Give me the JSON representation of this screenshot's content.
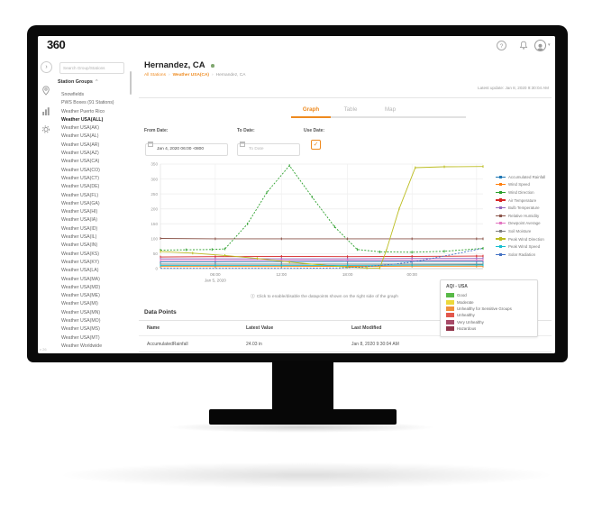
{
  "logo": "360",
  "icons": {
    "help": "?",
    "user_caret": "▾",
    "collapse": "›",
    "groups_caret": "^",
    "info": "ⓘ",
    "check": "✓",
    "breadcrumb_sep": "›"
  },
  "colors": {
    "accent": "#ee8a1f",
    "status_dot": "#7fa76f"
  },
  "rail": {
    "version": "v 26"
  },
  "sidebar": {
    "search_placeholder": "Search Group/Stations",
    "groups_header": "Station Groups",
    "items": [
      {
        "label": "Snowfields",
        "bold": false
      },
      {
        "label": "PWS Boxes (91 Stations)",
        "bold": false
      },
      {
        "label": "Weather Puerto Rico",
        "bold": false
      },
      {
        "label": "Weather USA(ALL)",
        "bold": true
      },
      {
        "label": "Weather USA(AK)",
        "bold": false
      },
      {
        "label": "Weather USA(AL)",
        "bold": false
      },
      {
        "label": "Weather USA(AR)",
        "bold": false
      },
      {
        "label": "Weather USA(AZ)",
        "bold": false
      },
      {
        "label": "Weather USA(CA)",
        "bold": false
      },
      {
        "label": "Weather USA(CO)",
        "bold": false
      },
      {
        "label": "Weather USA(CT)",
        "bold": false
      },
      {
        "label": "Weather USA(DE)",
        "bold": false
      },
      {
        "label": "Weather USA(FL)",
        "bold": false
      },
      {
        "label": "Weather USA(GA)",
        "bold": false
      },
      {
        "label": "Weather USA(HI)",
        "bold": false
      },
      {
        "label": "Weather USA(IA)",
        "bold": false
      },
      {
        "label": "Weather USA(ID)",
        "bold": false
      },
      {
        "label": "Weather USA(IL)",
        "bold": false
      },
      {
        "label": "Weather USA(IN)",
        "bold": false
      },
      {
        "label": "Weather USA(KS)",
        "bold": false
      },
      {
        "label": "Weather USA(KY)",
        "bold": false
      },
      {
        "label": "Weather USA(LA)",
        "bold": false
      },
      {
        "label": "Weather USA(MA)",
        "bold": false
      },
      {
        "label": "Weather USA(MD)",
        "bold": false
      },
      {
        "label": "Weather USA(ME)",
        "bold": false
      },
      {
        "label": "Weather USA(MI)",
        "bold": false
      },
      {
        "label": "Weather USA(MN)",
        "bold": false
      },
      {
        "label": "Weather USA(MO)",
        "bold": false
      },
      {
        "label": "Weather USA(MS)",
        "bold": false
      },
      {
        "label": "Weather USA(MT)",
        "bold": false
      },
      {
        "label": "Weather Worldwide",
        "bold": false
      }
    ]
  },
  "main": {
    "title": "Hernandez, CA",
    "breadcrumb": {
      "sep": "›",
      "items": [
        "All Stations",
        "Weather USA(CA)",
        "Hernandez, CA"
      ]
    },
    "latest_update": "Latest update: Jan 8, 2020 9:30:04 AM",
    "tabs": [
      {
        "label": "Graph",
        "active": true
      },
      {
        "label": "Table",
        "active": false
      },
      {
        "label": "Map",
        "active": false
      }
    ],
    "filters": {
      "from_label": "From Date:",
      "from_value": "Jan 4, 2020 06:00 -0800",
      "to_label": "To Date:",
      "to_placeholder": "To Date",
      "use_label": "Use Date:"
    },
    "note": "Click to enable/disable the datapoints shown on the right side of the graph",
    "aqi_legend": {
      "title": "AQI - USA",
      "items": [
        {
          "label": "Good",
          "color": "#58b947"
        },
        {
          "label": "Moderate",
          "color": "#ecd93b"
        },
        {
          "label": "Unhealthy for Sensitive Groups",
          "color": "#f0913c"
        },
        {
          "label": "Unhealthy",
          "color": "#e2574c"
        },
        {
          "label": "Very Unhealthy",
          "color": "#a84a68"
        },
        {
          "label": "Hazardous",
          "color": "#8f3349"
        }
      ]
    },
    "datapoints": {
      "heading": "Data Points",
      "columns": [
        "Name",
        "Latest Value",
        "Last Modified"
      ],
      "rows": [
        [
          "AccumulatedRainfall",
          "24.03 in",
          "Jan 8, 2020 9:30:04 AM"
        ]
      ]
    }
  },
  "chart_data": {
    "type": "line",
    "title": "",
    "xlabel": "",
    "ylabel": "",
    "ylim": [
      0,
      350
    ],
    "yticks": [
      0,
      50,
      100,
      150,
      200,
      250,
      300,
      350
    ],
    "grid": true,
    "legend_position": "right",
    "xticks": [
      {
        "pos": 17,
        "label": "06:00",
        "sublabel": "Jan 5, 2020"
      },
      {
        "pos": 37.5,
        "label": "12:00",
        "sublabel": ""
      },
      {
        "pos": 58,
        "label": "18:00",
        "sublabel": ""
      },
      {
        "pos": 78,
        "label": "00:00",
        "sublabel": ""
      },
      {
        "pos": 98,
        "label": "",
        "sublabel": ""
      }
    ],
    "series": [
      {
        "name": "Accumulated Rainfall",
        "color": "#1f77b4",
        "dash": false,
        "markers": true,
        "points": [
          [
            0,
            23
          ],
          [
            17,
            23
          ],
          [
            37.5,
            23.5
          ],
          [
            58,
            24
          ],
          [
            78,
            24
          ],
          [
            98,
            24
          ],
          [
            100,
            24
          ]
        ]
      },
      {
        "name": "Wind Speed",
        "color": "#ff7f0e",
        "dash": false,
        "markers": true,
        "points": [
          [
            0,
            7
          ],
          [
            17,
            7
          ],
          [
            37.5,
            7
          ],
          [
            58,
            7.5
          ],
          [
            78,
            8
          ],
          [
            98,
            8
          ],
          [
            100,
            8
          ]
        ]
      },
      {
        "name": "Wind Direction",
        "color": "#2ca02c",
        "dash": true,
        "markers": true,
        "points": [
          [
            0,
            62
          ],
          [
            8,
            63
          ],
          [
            16,
            64
          ],
          [
            20,
            66
          ],
          [
            27,
            150
          ],
          [
            33,
            255
          ],
          [
            40,
            345
          ],
          [
            47,
            240
          ],
          [
            54,
            140
          ],
          [
            61,
            64
          ],
          [
            68,
            56
          ],
          [
            78,
            55
          ],
          [
            88,
            58
          ],
          [
            100,
            68
          ]
        ]
      },
      {
        "name": "Air Temperature",
        "color": "#d62728",
        "dash": false,
        "markers": true,
        "points": [
          [
            0,
            39
          ],
          [
            17,
            40
          ],
          [
            37.5,
            41
          ],
          [
            58,
            40
          ],
          [
            78,
            41
          ],
          [
            98,
            42
          ],
          [
            100,
            42
          ]
        ]
      },
      {
        "name": "Bulb Temperature",
        "color": "#9467bd",
        "dash": false,
        "markers": true,
        "points": [
          [
            0,
            33
          ],
          [
            17,
            33
          ],
          [
            37.5,
            33
          ],
          [
            58,
            33
          ],
          [
            78,
            34
          ],
          [
            98,
            34
          ],
          [
            100,
            34
          ]
        ]
      },
      {
        "name": "Relative Humidity",
        "color": "#8c564b",
        "dash": false,
        "markers": true,
        "points": [
          [
            0,
            101
          ],
          [
            17,
            100
          ],
          [
            37.5,
            100
          ],
          [
            58,
            100
          ],
          [
            78,
            100
          ],
          [
            98,
            100
          ],
          [
            100,
            100
          ]
        ]
      },
      {
        "name": "Dewpoint Average",
        "color": "#e377c2",
        "dash": false,
        "markers": true,
        "points": [
          [
            0,
            28
          ],
          [
            17,
            28
          ],
          [
            37.5,
            28
          ],
          [
            58,
            28
          ],
          [
            78,
            28
          ],
          [
            98,
            28
          ],
          [
            100,
            28
          ]
        ]
      },
      {
        "name": "Soil Moisture",
        "color": "#7f7f7f",
        "dash": false,
        "markers": true,
        "points": [
          [
            0,
            15
          ],
          [
            17,
            15
          ],
          [
            37.5,
            15
          ],
          [
            58,
            15
          ],
          [
            78,
            15
          ],
          [
            98,
            15
          ],
          [
            100,
            15
          ]
        ]
      },
      {
        "name": "Peak Wind Direction",
        "color": "#bcbd22",
        "dash": false,
        "markers": true,
        "points": [
          [
            0,
            57
          ],
          [
            10,
            52
          ],
          [
            20,
            44
          ],
          [
            30,
            34
          ],
          [
            40,
            22
          ],
          [
            50,
            12
          ],
          [
            58,
            5
          ],
          [
            64,
            2
          ],
          [
            68,
            2
          ],
          [
            70,
            60
          ],
          [
            74,
            200
          ],
          [
            79,
            338
          ],
          [
            88,
            341
          ],
          [
            100,
            342
          ]
        ]
      },
      {
        "name": "Peak Wind Speed",
        "color": "#17becf",
        "dash": false,
        "markers": true,
        "points": [
          [
            0,
            11
          ],
          [
            17,
            11
          ],
          [
            37.5,
            11
          ],
          [
            58,
            11
          ],
          [
            78,
            11.5
          ],
          [
            98,
            12
          ],
          [
            100,
            12
          ]
        ]
      },
      {
        "name": "Solar Radiation",
        "color": "#4472c4",
        "dash": true,
        "markers": false,
        "points": [
          [
            0,
            1
          ],
          [
            20,
            1
          ],
          [
            40,
            1
          ],
          [
            55,
            2
          ],
          [
            62,
            5
          ],
          [
            70,
            12
          ],
          [
            78,
            22
          ],
          [
            86,
            38
          ],
          [
            94,
            55
          ],
          [
            100,
            68
          ]
        ]
      }
    ]
  }
}
